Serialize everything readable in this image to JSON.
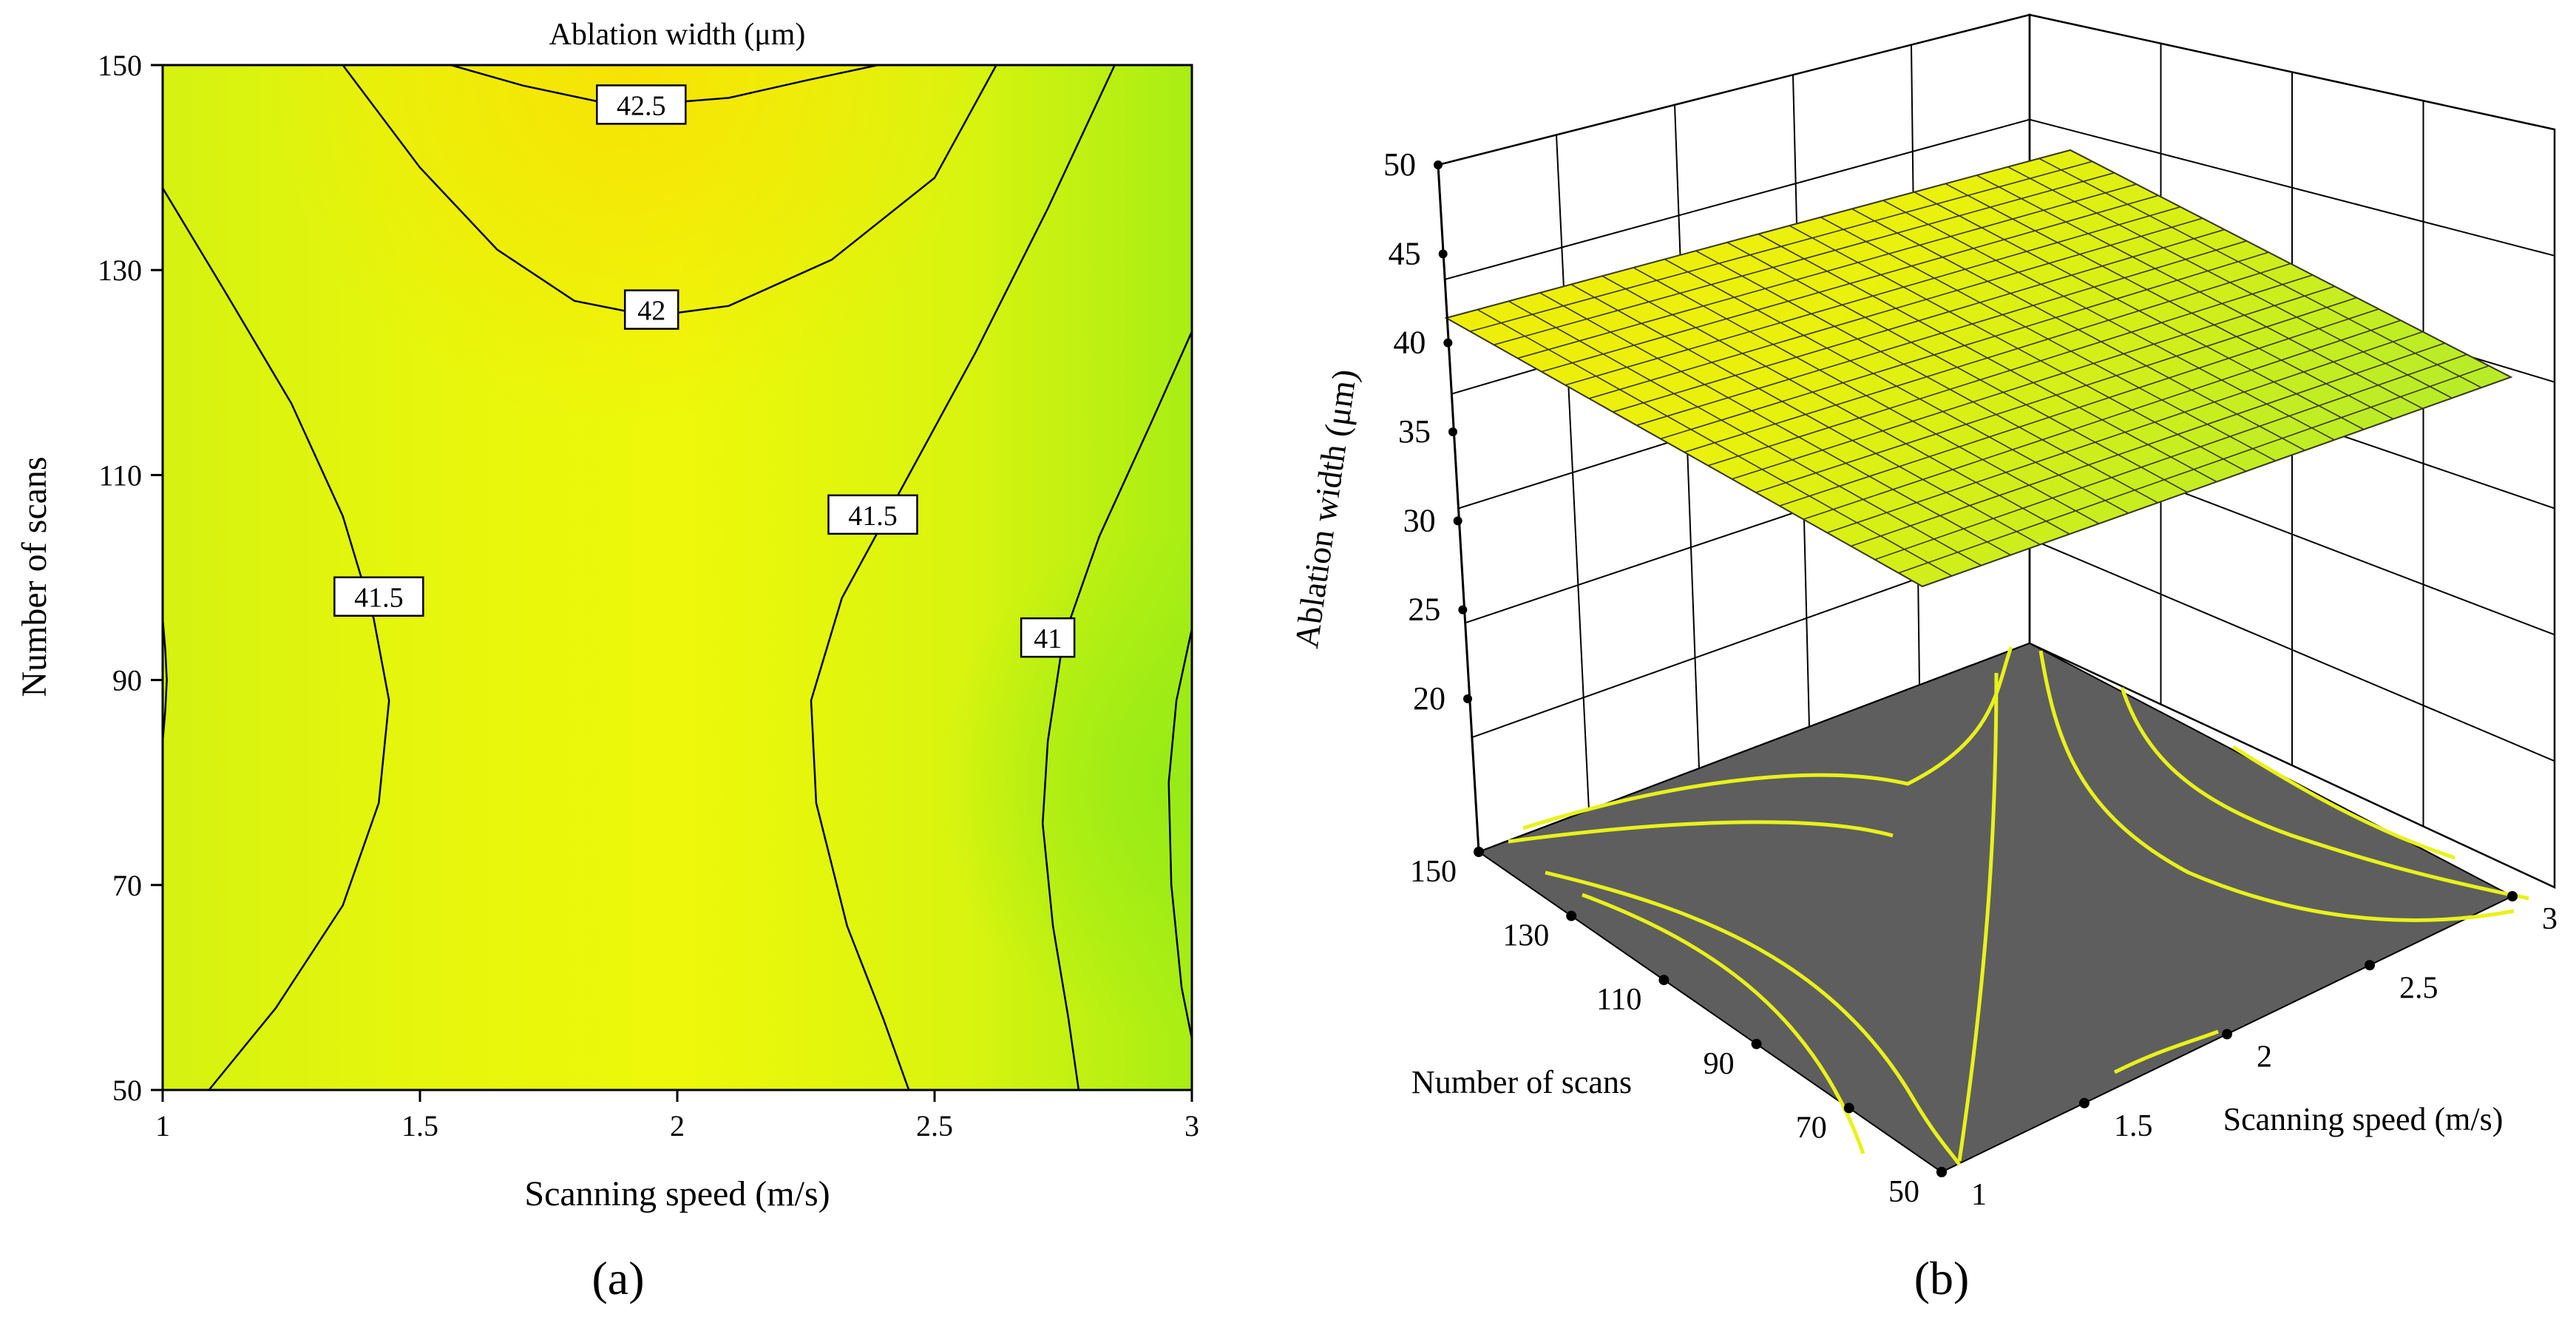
{
  "chart_data": [
    {
      "panel": "(a)",
      "type": "contour",
      "title": "Ablation width (μm)",
      "xlabel": "Scanning speed (m/s)",
      "ylabel": "Number of scans",
      "xlim": [
        1,
        3
      ],
      "ylim": [
        50,
        150
      ],
      "xticks": [
        "1",
        "1.5",
        "2",
        "2.5",
        "3"
      ],
      "yticks": [
        "50",
        "70",
        "90",
        "110",
        "130",
        "150"
      ],
      "x_tick_values": [
        1,
        1.5,
        2,
        2.5,
        3
      ],
      "y_tick_values": [
        50,
        70,
        90,
        110,
        130,
        150
      ],
      "contour_levels": [
        {
          "label": "42.5",
          "value": 42.5
        },
        {
          "label": "42",
          "value": 42
        },
        {
          "label": "41.5",
          "value": 41.5
        },
        {
          "label": "41",
          "value": 41
        }
      ],
      "contour_label_points": [
        {
          "text": "42.5",
          "x": 1.93,
          "y": 146
        },
        {
          "text": "42",
          "x": 1.95,
          "y": 126
        },
        {
          "text": "41.5",
          "x": 1.42,
          "y": 98
        },
        {
          "text": "41.5",
          "x": 2.38,
          "y": 106
        },
        {
          "text": "41",
          "x": 2.72,
          "y": 94
        }
      ],
      "colormap": [
        "#9aeb15",
        "#c8f212",
        "#e9f80c",
        "#f7e906"
      ],
      "grid": false
    },
    {
      "panel": "(b)",
      "type": "surface3d",
      "zlabel": "Ablation width (μm)",
      "xlabel": "Scanning speed (m/s)",
      "ylabel": "Number of scans",
      "xlim": [
        1,
        3
      ],
      "ylim": [
        50,
        150
      ],
      "zlim": [
        20,
        50
      ],
      "xticks": [
        "1",
        "1.5",
        "2",
        "2.5",
        "3"
      ],
      "yticks": [
        "50",
        "70",
        "90",
        "110",
        "130",
        "150"
      ],
      "zticks": [
        "20",
        "25",
        "30",
        "35",
        "40",
        "45",
        "50"
      ],
      "surface_value_range": [
        40.6,
        42.6
      ],
      "floor_contours": true,
      "floor_color": "#606060",
      "grid": true
    }
  ],
  "panel_labels": [
    "(a)",
    "(b)"
  ]
}
